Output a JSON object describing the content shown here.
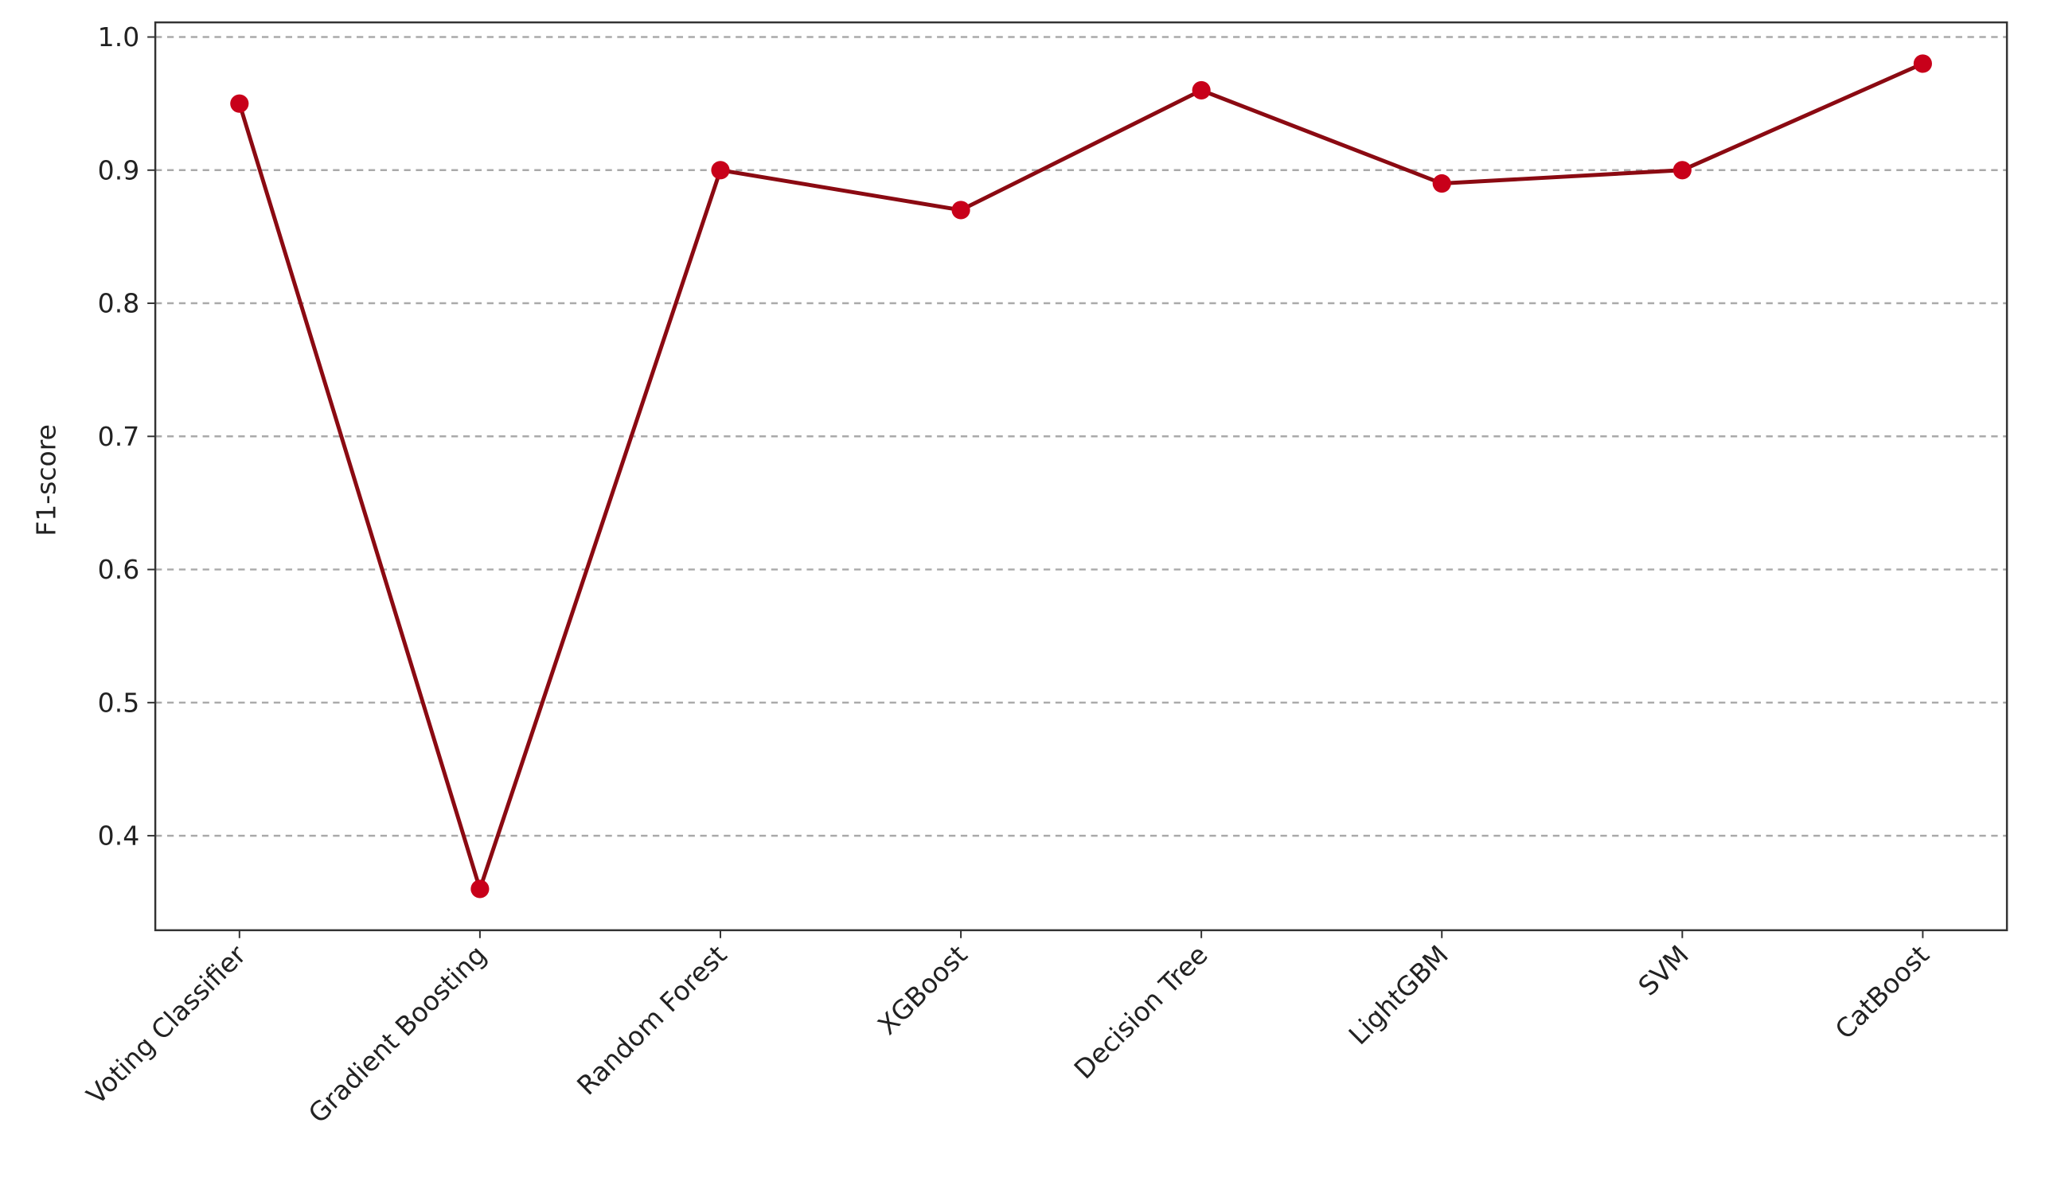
{
  "chart_data": {
    "type": "line",
    "y_label": "F1-score",
    "categories": [
      "Voting Classifier",
      "Gradient Boosting",
      "Random Forest",
      "XGBoost",
      "Decision Tree",
      "LightGBM",
      "SVM",
      "CatBoost"
    ],
    "values": [
      0.95,
      0.36,
      0.9,
      0.87,
      0.96,
      0.89,
      0.9,
      0.98
    ],
    "line_color": "#8b0a12",
    "marker_color": "#c8001a",
    "ylim": [
      0.329,
      1.011
    ],
    "yticks": [
      0.4,
      0.5,
      0.6,
      0.7,
      0.8,
      0.9,
      {
        "value": 1,
        "label": "1.0"
      }
    ],
    "grid": true
  }
}
